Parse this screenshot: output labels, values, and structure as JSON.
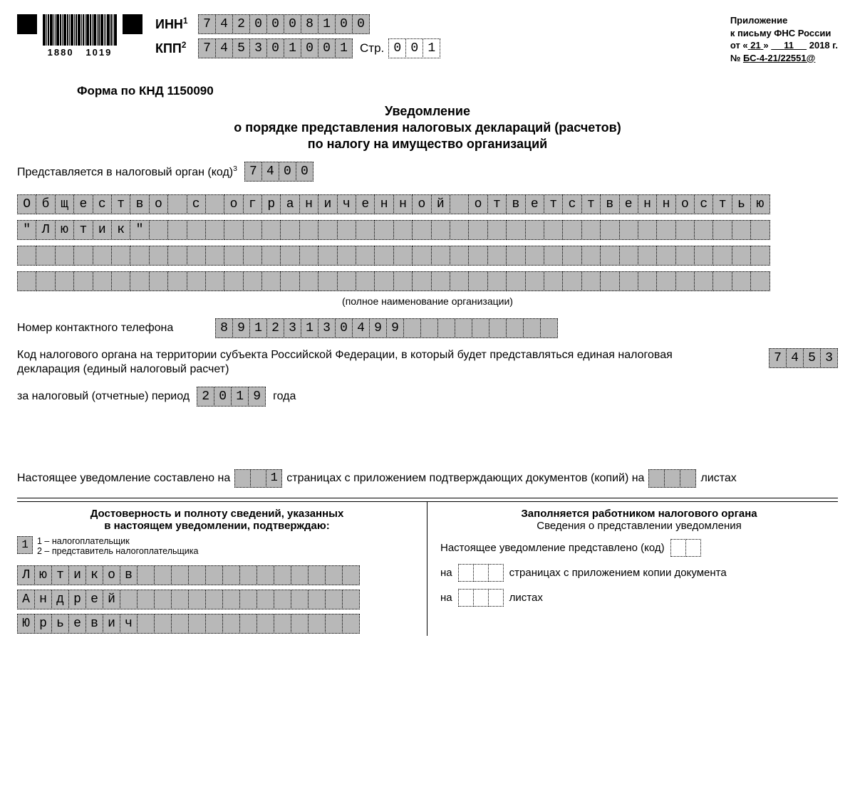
{
  "header": {
    "barcode_left": "1880",
    "barcode_right": "1019",
    "inn_label": "ИНН",
    "kpp_label": "КПП",
    "inn": [
      "7",
      "4",
      "2",
      "0",
      "0",
      "0",
      "8",
      "1",
      "0",
      "0"
    ],
    "kpp": [
      "7",
      "4",
      "5",
      "3",
      "0",
      "1",
      "0",
      "0",
      "1"
    ],
    "page_label": "Стр.",
    "page": [
      "0",
      "0",
      "1"
    ]
  },
  "appendix": {
    "l1": "Приложение",
    "l2": "к письму ФНС России",
    "date_prefix": "от «",
    "date_day": "21",
    "date_mid": "»",
    "date_month": "11",
    "date_year": "2018 г.",
    "num_prefix": "№",
    "num": "БС-4-21/22551@"
  },
  "form_code": "Форма по КНД 1150090",
  "title_l1": "Уведомление",
  "title_l2": "о порядке представления налоговых деклараций (расчетов)",
  "title_l3": "по налогу на имущество организаций",
  "tax_org": {
    "label": "Представляется в налоговый орган (код)",
    "sup": "3",
    "code": [
      "7",
      "4",
      "0",
      "0"
    ]
  },
  "org_name_caption": "(полное наименование организации)",
  "org_name_rows": [
    [
      "О",
      "б",
      "щ",
      "е",
      "с",
      "т",
      "в",
      "о",
      "",
      "с",
      "",
      "о",
      "г",
      "р",
      "а",
      "н",
      "и",
      "ч",
      "е",
      "н",
      "н",
      "о",
      "й",
      "",
      "о",
      "т",
      "в",
      "е",
      "т",
      "с",
      "т",
      "в",
      "е",
      "н",
      "н",
      "о",
      "с",
      "т",
      "ь",
      "ю"
    ],
    [
      "\"",
      "Л",
      "ю",
      "т",
      "и",
      "к",
      "\"",
      "",
      "",
      "",
      "",
      "",
      "",
      "",
      "",
      "",
      "",
      "",
      "",
      "",
      "",
      "",
      "",
      "",
      "",
      "",
      "",
      "",
      "",
      "",
      "",
      "",
      "",
      "",
      "",
      "",
      "",
      "",
      "",
      ""
    ],
    [
      "",
      "",
      "",
      "",
      "",
      "",
      "",
      "",
      "",
      "",
      "",
      "",
      "",
      "",
      "",
      "",
      "",
      "",
      "",
      "",
      "",
      "",
      "",
      "",
      "",
      "",
      "",
      "",
      "",
      "",
      "",
      "",
      "",
      "",
      "",
      "",
      "",
      "",
      "",
      ""
    ],
    [
      "",
      "",
      "",
      "",
      "",
      "",
      "",
      "",
      "",
      "",
      "",
      "",
      "",
      "",
      "",
      "",
      "",
      "",
      "",
      "",
      "",
      "",
      "",
      "",
      "",
      "",
      "",
      "",
      "",
      "",
      "",
      "",
      "",
      "",
      "",
      "",
      "",
      "",
      "",
      ""
    ]
  ],
  "phone": {
    "label": "Номер контактного телефона",
    "digits": [
      "8",
      "9",
      "1",
      "2",
      "3",
      "1",
      "3",
      "0",
      "4",
      "9",
      "9",
      "",
      "",
      "",
      "",
      "",
      "",
      "",
      "",
      ""
    ]
  },
  "dest": {
    "text": "Код налогового органа на территории субъекта Российской Федерации, в который будет представляться единая налоговая декларация (единый налоговый расчет)",
    "code": [
      "7",
      "4",
      "5",
      "3"
    ]
  },
  "period": {
    "prefix": "за налоговый (отчетные) период",
    "year": [
      "2",
      "0",
      "1",
      "9"
    ],
    "suffix": "года"
  },
  "composed": {
    "t1": "Настоящее уведомление составлено на",
    "pages": [
      "",
      "",
      "1"
    ],
    "t2": "страницах с приложением подтверждающих документов (копий) на",
    "sheets": [
      "",
      "",
      ""
    ],
    "t3": "листах"
  },
  "left": {
    "h1": "Достоверность и полноту сведений, указанных",
    "h2": "в настоящем уведомлении, подтверждаю:",
    "role": [
      "1"
    ],
    "legend1": "1 – налогоплательщик",
    "legend2": "2 – представитель налогоплательщика",
    "name_rows": [
      [
        "Л",
        "ю",
        "т",
        "и",
        "к",
        "о",
        "в",
        "",
        "",
        "",
        "",
        "",
        "",
        "",
        "",
        "",
        "",
        "",
        "",
        ""
      ],
      [
        "А",
        "н",
        "д",
        "р",
        "е",
        "й",
        "",
        "",
        "",
        "",
        "",
        "",
        "",
        "",
        "",
        "",
        "",
        "",
        "",
        ""
      ],
      [
        "Ю",
        "р",
        "ь",
        "е",
        "в",
        "и",
        "ч",
        "",
        "",
        "",
        "",
        "",
        "",
        "",
        "",
        "",
        "",
        "",
        "",
        ""
      ]
    ]
  },
  "right": {
    "h1": "Заполняется работником налогового органа",
    "h2": "Сведения о представлении уведомления",
    "presented_label": "Настоящее уведомление представлено (код)",
    "presented_code": [
      "",
      ""
    ],
    "line2a": "на",
    "line2_cells": [
      "",
      "",
      ""
    ],
    "line2b": "страницах с приложением копии документа",
    "line3a": "на",
    "line3_cells": [
      "",
      "",
      ""
    ],
    "line3b": "листах"
  }
}
